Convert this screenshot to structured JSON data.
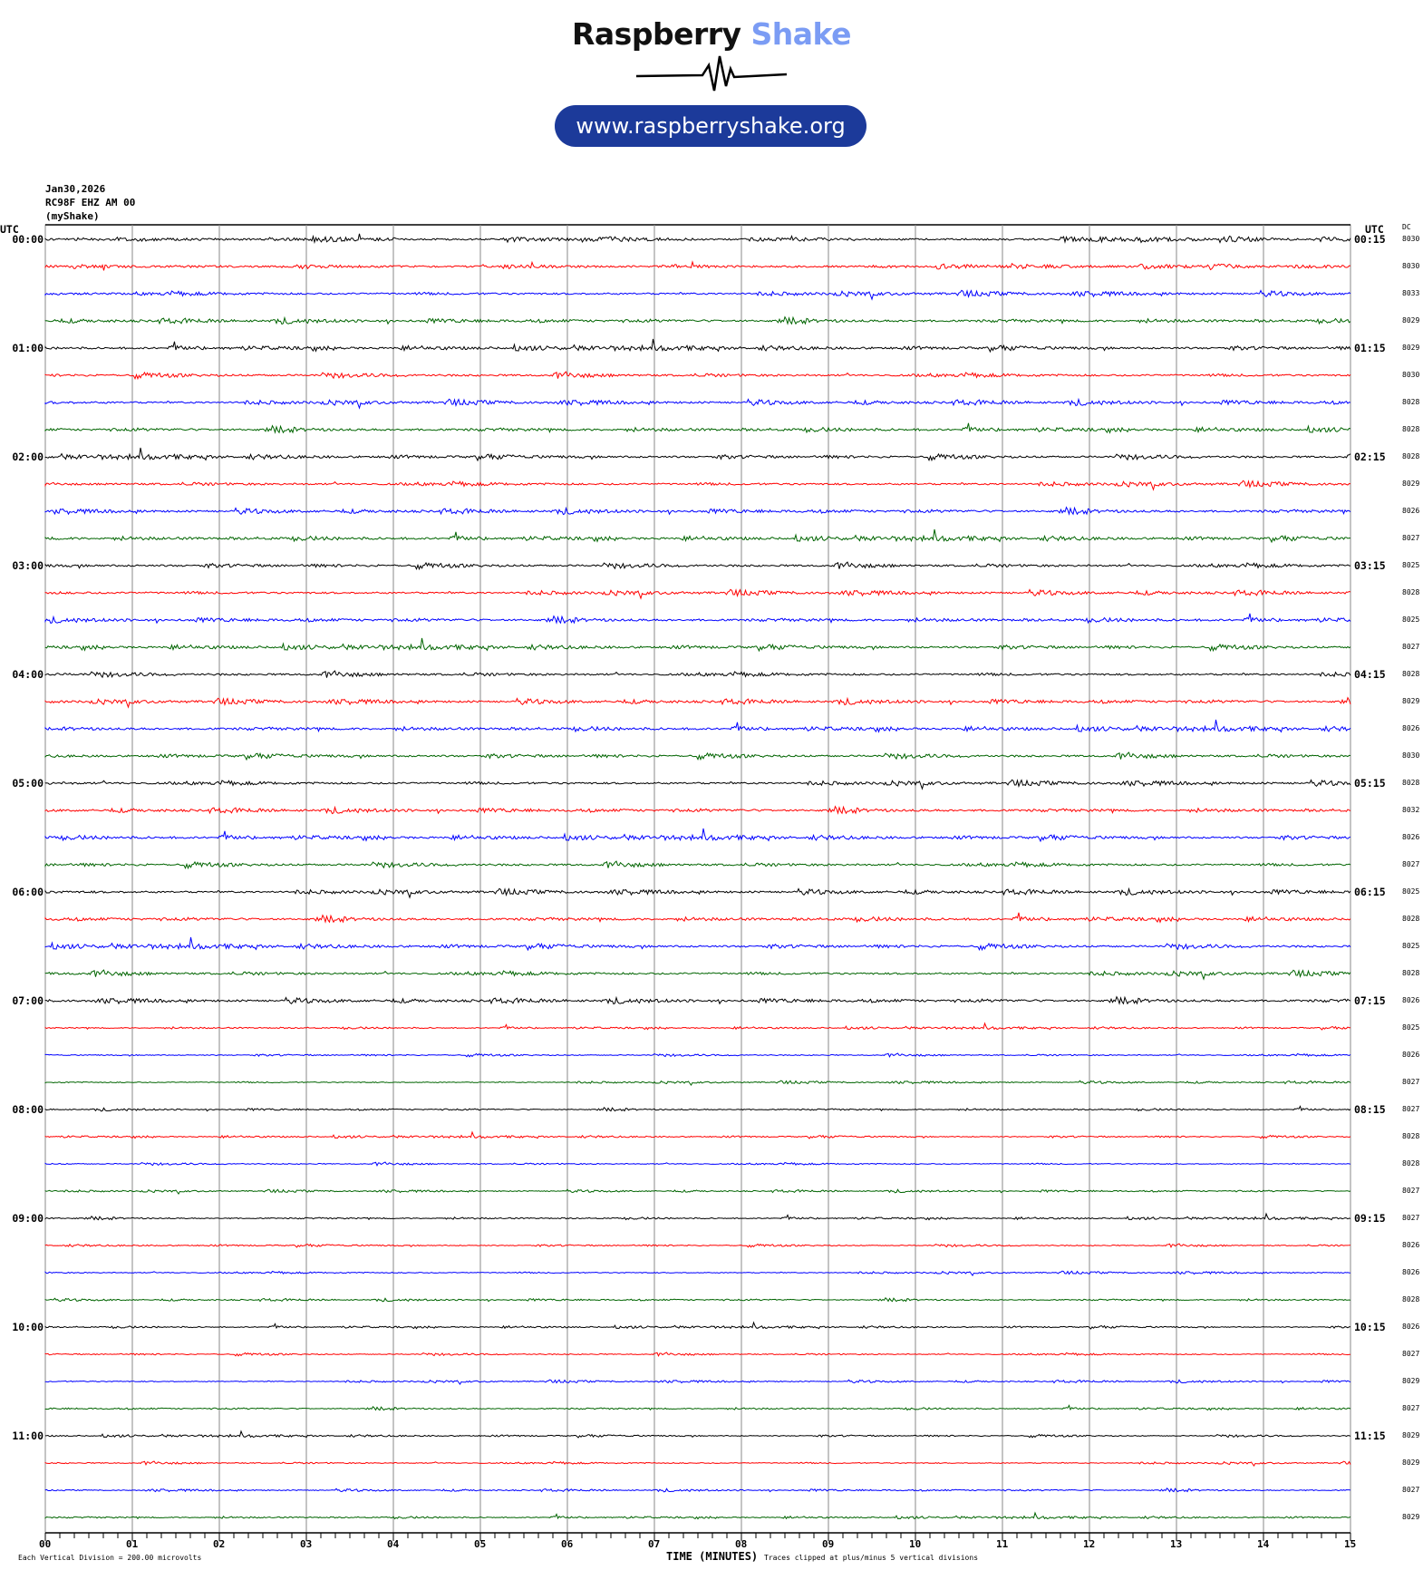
{
  "logo": {
    "word1": "Raspberry",
    "word2": "Shake",
    "url": "www.raspberryshake.org",
    "colors": {
      "word2": "#7b9cf4",
      "pill": "#1c3a9a"
    }
  },
  "header": {
    "date": "Jan30,2026",
    "station": "RC98F EHZ AM 00",
    "network": "(myShake)"
  },
  "chart_data": {
    "type": "line",
    "title": "",
    "left_axis_title": "UTC",
    "right_axis_title": "UTC",
    "dc_title": "DC",
    "xlabel": "TIME (MINUTES)",
    "xlim": [
      0,
      15
    ],
    "x_ticks": [
      "00",
      "01",
      "02",
      "03",
      "04",
      "05",
      "06",
      "07",
      "08",
      "09",
      "10",
      "11",
      "12",
      "13",
      "14",
      "15"
    ],
    "left_row_labels": [
      "00:00",
      "01:00",
      "02:00",
      "03:00",
      "04:00",
      "05:00",
      "06:00",
      "07:00",
      "08:00",
      "09:00",
      "10:00",
      "11:00"
    ],
    "right_row_labels": [
      "00:15",
      "01:15",
      "02:15",
      "03:15",
      "04:15",
      "05:15",
      "06:15",
      "07:15",
      "08:15",
      "09:15",
      "10:15",
      "11:15"
    ],
    "trace_colors": [
      "#000000",
      "#ff0000",
      "#0000ff",
      "#006400"
    ],
    "dc_offsets": [
      "8030",
      "8030",
      "8033",
      "8029",
      "8029",
      "8030",
      "8028",
      "8028",
      "8028",
      "8029",
      "8026",
      "8027",
      "8025",
      "8028",
      "8025",
      "8027",
      "8028",
      "8029",
      "8026",
      "8030",
      "8028",
      "8032",
      "8026",
      "8027",
      "8025",
      "8028",
      "8025",
      "8028",
      "8026",
      "8025",
      "8026",
      "8027",
      "8027",
      "8028",
      "8028",
      "8027",
      "8027",
      "8026",
      "8026",
      "8028",
      "8026",
      "8027",
      "8029",
      "8027",
      "8029",
      "8029",
      "8027",
      "8029"
    ],
    "grid": true
  },
  "footer": {
    "scale": "Each Vertical Division =  200.00 microvolts",
    "clip": "Traces clipped at plus/minus 5 vertical divisions"
  }
}
